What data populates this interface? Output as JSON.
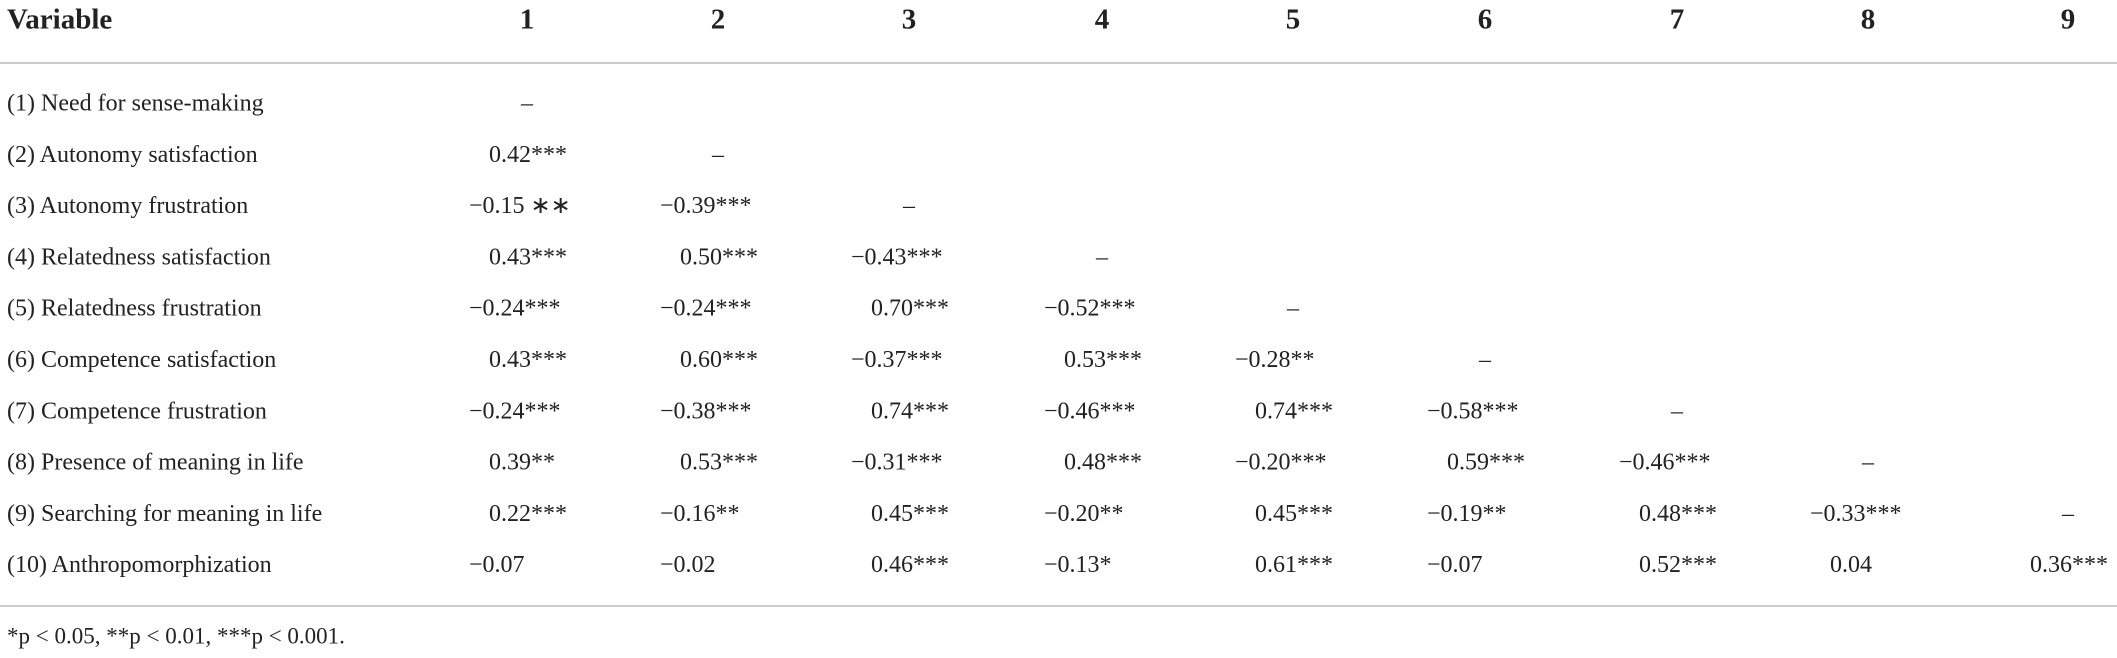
{
  "table": {
    "header": [
      "Variable",
      "1",
      "2",
      "3",
      "4",
      "5",
      "6",
      "7",
      "8",
      "9"
    ],
    "rows": [
      {
        "label": "(1) Need for sense-making",
        "cells": [
          "–"
        ]
      },
      {
        "label": "(2) Autonomy satisfaction",
        "cells": [
          "0.42***",
          "–"
        ]
      },
      {
        "label": "(3) Autonomy frustration",
        "cells": [
          "−0.15 ∗∗",
          "−0.39***",
          "–"
        ]
      },
      {
        "label": "(4) Relatedness satisfaction",
        "cells": [
          "0.43***",
          "0.50***",
          "−0.43***",
          "–"
        ]
      },
      {
        "label": "(5) Relatedness frustration",
        "cells": [
          "−0.24***",
          "−0.24***",
          "0.70***",
          "−0.52***",
          "–"
        ]
      },
      {
        "label": "(6) Competence satisfaction",
        "cells": [
          "0.43***",
          "0.60***",
          "−0.37***",
          "0.53***",
          "−0.28**",
          "–"
        ]
      },
      {
        "label": "(7) Competence frustration",
        "cells": [
          "−0.24***",
          "−0.38***",
          "0.74***",
          "−0.46***",
          "0.74***",
          "−0.58***",
          "–"
        ]
      },
      {
        "label": "(8) Presence of meaning in life",
        "cells": [
          "0.39**",
          "0.53***",
          "−0.31***",
          "0.48***",
          "−0.20***",
          "0.59***",
          "−0.46***",
          "–"
        ]
      },
      {
        "label": "(9) Searching for meaning in life",
        "cells": [
          "0.22***",
          "−0.16**",
          "0.45***",
          "−0.20**",
          "0.45***",
          "−0.19**",
          "0.48***",
          "−0.33***",
          "–"
        ]
      },
      {
        "label": "(10) Anthropomorphization",
        "cells": [
          "−0.07",
          "−0.02",
          "0.46***",
          "−0.13*",
          "0.61***",
          "−0.07",
          "0.52***",
          "0.04",
          "0.36***"
        ]
      }
    ],
    "footnote": "*p < 0.05, **p < 0.01, ***p < 0.001."
  }
}
